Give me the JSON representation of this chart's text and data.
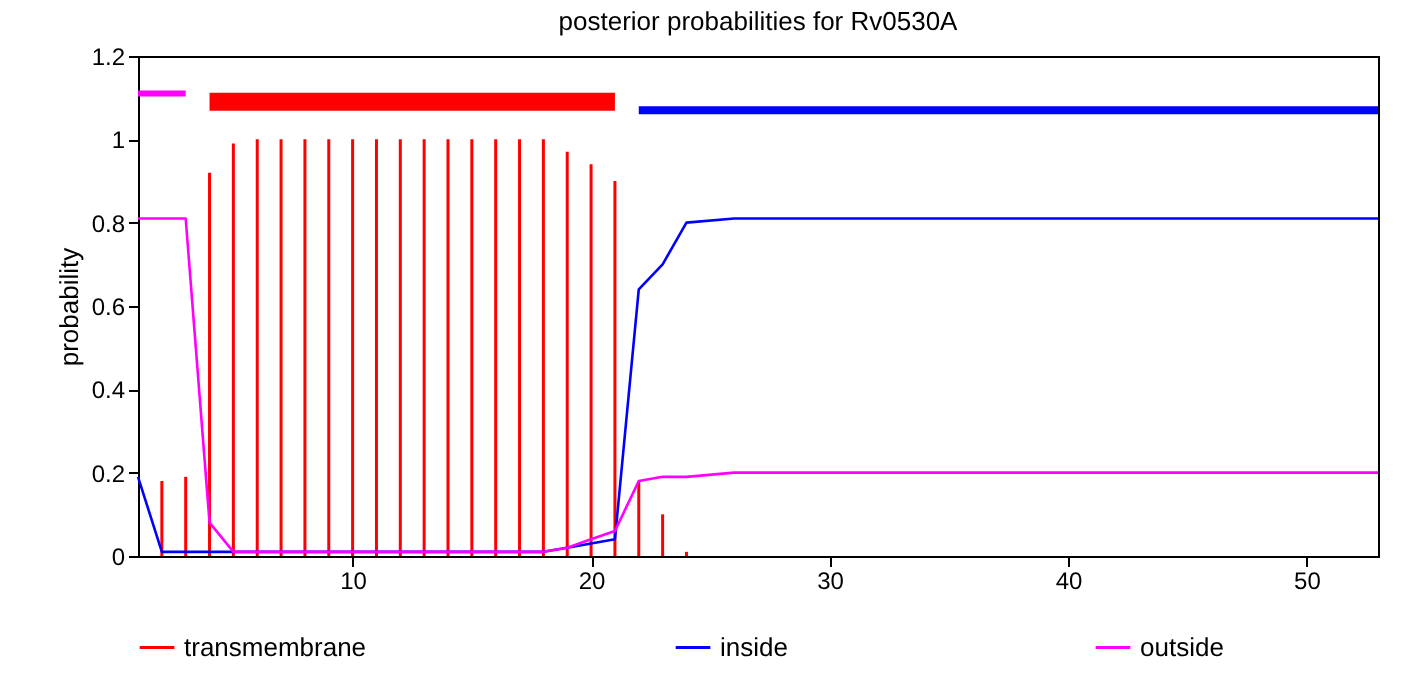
{
  "chart_data": {
    "type": "line",
    "title": "posterior probabilities for Rv0530A",
    "ylabel": "probability",
    "xlim": [
      1,
      53
    ],
    "xticks": [
      10,
      20,
      30,
      40,
      50
    ],
    "ylim": [
      0,
      1.2
    ],
    "yticks": [
      0,
      0.2,
      0.4,
      0.6,
      0.8,
      1,
      1.2
    ],
    "grid": false,
    "legend": "bottom",
    "marker": "none",
    "line_style": "solid",
    "series": [
      {
        "name": "transmembrane",
        "type": "bar",
        "color": "#ff0000",
        "x": [
          2,
          3,
          4,
          5,
          6,
          7,
          8,
          9,
          10,
          11,
          12,
          13,
          14,
          15,
          16,
          17,
          18,
          19,
          20,
          21,
          22,
          23,
          24
        ],
        "values": [
          0.18,
          0.19,
          0.92,
          0.99,
          1.0,
          1.0,
          1.0,
          1.0,
          1.0,
          1.0,
          1.0,
          1.0,
          1.0,
          1.0,
          1.0,
          1.0,
          1.0,
          0.97,
          0.94,
          0.9,
          0.18,
          0.1,
          0.01
        ]
      },
      {
        "name": "inside",
        "type": "line",
        "color": "#0000ff",
        "x": [
          1,
          2,
          18,
          19,
          20,
          21,
          22,
          23,
          24,
          26,
          53
        ],
        "values": [
          0.19,
          0.01,
          0.01,
          0.02,
          0.03,
          0.04,
          0.64,
          0.7,
          0.8,
          0.81,
          0.81
        ]
      },
      {
        "name": "outside",
        "type": "line",
        "color": "#ff00ff",
        "x": [
          1,
          3,
          4,
          5,
          18,
          19,
          20,
          21,
          22,
          23,
          24,
          26,
          53
        ],
        "values": [
          0.81,
          0.81,
          0.08,
          0.01,
          0.01,
          0.02,
          0.04,
          0.06,
          0.18,
          0.19,
          0.19,
          0.2,
          0.2
        ]
      },
      {
        "color": "#ff00ff",
        "x": [
          1,
          3
        ],
        "values": [
          1.11,
          1.11
        ]
      },
      {
        "color": "#ff0000",
        "x": [
          4,
          21
        ],
        "values": [
          1.09,
          1.09
        ]
      },
      {
        "color": "#0000ff",
        "x": [
          22,
          53
        ],
        "values": [
          1.07,
          1.07
        ]
      }
    ]
  }
}
